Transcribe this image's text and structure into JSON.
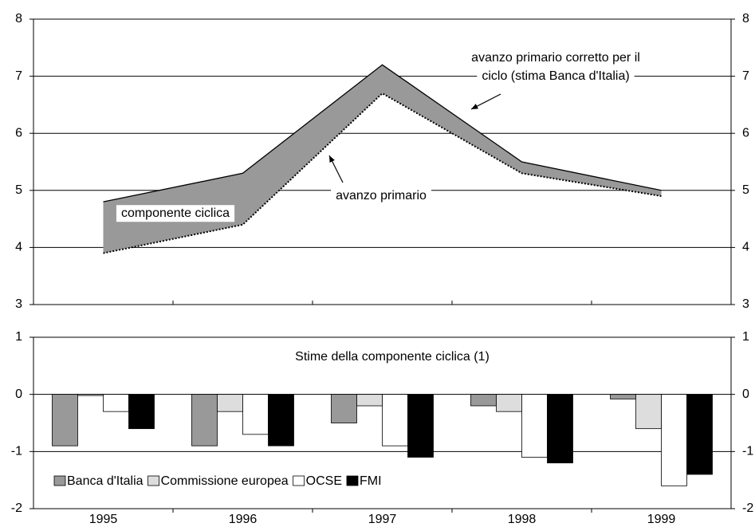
{
  "chart_data": [
    {
      "type": "line",
      "fill_between": true,
      "fill_color": "#999999",
      "series": [
        {
          "color": "#000000",
          "style": "solid",
          "values": [
            4.8,
            5.3,
            7.2,
            5.5,
            5.0
          ]
        },
        {
          "color": "#000000",
          "style": "dotted",
          "values": [
            3.9,
            4.4,
            6.7,
            5.3,
            4.9
          ]
        }
      ],
      "ylim": [
        3,
        8
      ],
      "yticks": [
        3,
        4,
        5,
        6,
        7,
        8
      ],
      "grid": true,
      "annotations": [
        {
          "lines": [
            "avanzo primario corretto per il",
            "ciclo (stima Banca d'Italia)"
          ]
        },
        {
          "lines": [
            "avanzo primario"
          ]
        },
        {
          "lines": [
            "componente ciclica"
          ]
        }
      ]
    },
    {
      "type": "bar",
      "title": "Stime della componente ciclica (1)",
      "categories": [
        "1995",
        "1996",
        "1997",
        "1998",
        "1999"
      ],
      "series": [
        {
          "name": "Banca d'Italia",
          "color": "#999999",
          "values": [
            -0.9,
            -0.9,
            -0.5,
            -0.2,
            -0.08
          ]
        },
        {
          "name": "Commissione europea",
          "color": "#dddddd",
          "values": [
            -0.02,
            -0.3,
            -0.2,
            -0.3,
            -0.6
          ]
        },
        {
          "name": "OCSE",
          "color": "#ffffff",
          "values": [
            -0.3,
            -0.7,
            -0.9,
            -1.1,
            -1.6
          ]
        },
        {
          "name": "FMI",
          "color": "#000000",
          "values": [
            -0.6,
            -0.9,
            -1.1,
            -1.2,
            -1.4
          ]
        }
      ],
      "ylim": [
        -2,
        1
      ],
      "yticks": [
        -2,
        -1,
        0,
        1
      ],
      "grid": true,
      "legend": "lower left"
    }
  ]
}
